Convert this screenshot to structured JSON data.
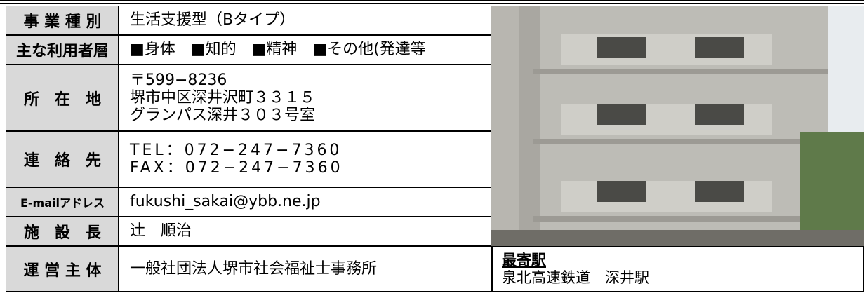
{
  "table": {
    "rows": [
      [
        "事 業 種 別",
        [
          "生活支援型（Bタイプ）"
        ]
      ],
      [
        "主な利用者層",
        [
          "■身体　■知的　■精神　■その他(発達等"
        ]
      ],
      [
        "所　在　地",
        [
          "〒599−8236",
          "堺市中区深井沢町３３１５",
          "グランパス深井３０３号室"
        ]
      ],
      [
        "連　絡　先",
        [
          "TEL：072−247−7360",
          "FAX：072−247−7360"
        ]
      ],
      [
        "E-mailアドレス",
        [
          "fukushi_sakai@ybb.ne.jp"
        ]
      ],
      [
        "施　設　長",
        [
          "辻　順治"
        ]
      ],
      [
        "運 営 主 体",
        [
          "一般社団法人堺市社会福祉士事務所"
        ]
      ]
    ]
  },
  "station": {
    "heading": "最寄駅",
    "text": "泉北高速鉄道　深井駅"
  }
}
